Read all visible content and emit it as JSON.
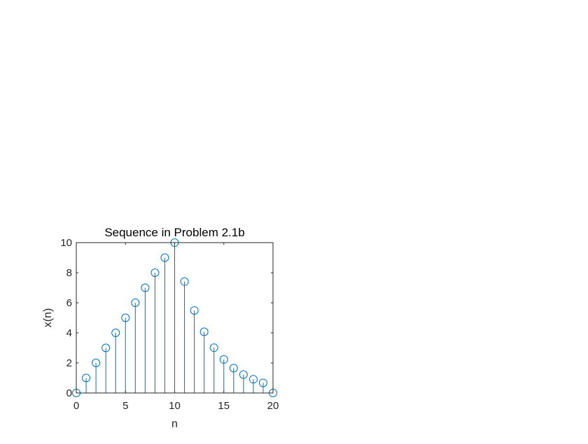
{
  "chart_data": {
    "type": "stem",
    "title": "Sequence in Problem 2.1b",
    "xlabel": "n",
    "ylabel": "x(n)",
    "xlim": [
      0,
      20
    ],
    "ylim": [
      0,
      10
    ],
    "xticks": [
      0,
      5,
      10,
      15,
      20
    ],
    "yticks": [
      0,
      2,
      4,
      6,
      8,
      10
    ],
    "grid": false,
    "series": [
      {
        "x": [
          0,
          1,
          2,
          3,
          4,
          5,
          6,
          7,
          8,
          9,
          10,
          11,
          12,
          13,
          14,
          15,
          16,
          17,
          18,
          19,
          20
        ],
        "values": [
          0,
          1,
          2,
          3,
          4,
          5,
          6,
          7,
          8,
          9,
          10,
          7.41,
          5.49,
          4.07,
          3.01,
          2.23,
          1.65,
          1.22,
          0.91,
          0.67,
          0
        ],
        "color": "#0072BD",
        "marker": "circle"
      }
    ]
  }
}
